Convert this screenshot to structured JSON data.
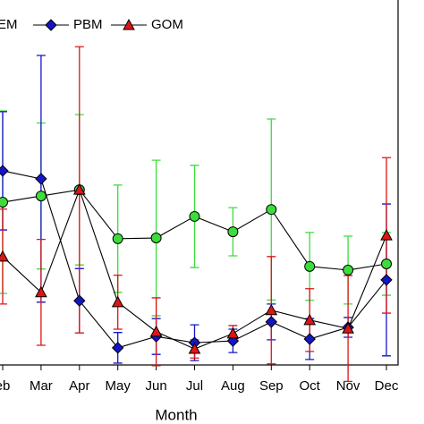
{
  "chart_data": {
    "type": "line",
    "x_label": "Month",
    "categories": [
      "eb",
      "Mar",
      "Apr",
      "May",
      "Jun",
      "Jul",
      "Aug",
      "Sep",
      "Oct",
      "Nov",
      "Dec"
    ],
    "ylim": [
      0,
      100
    ],
    "series": [
      {
        "name": "EM",
        "color": "#3ddc3d",
        "marker": "circle",
        "values": [
          44.6,
          46.3,
          48.0,
          34.6,
          34.8,
          40.7,
          36.5,
          42.6,
          27.0,
          26.0,
          27.7
        ],
        "errors": [
          25,
          20,
          20.6,
          14.7,
          21.3,
          14,
          6.6,
          24.8,
          9.3,
          9.3,
          8.6
        ]
      },
      {
        "name": "PBM",
        "color": "#1515c8",
        "marker": "diamond",
        "values": [
          53.2,
          51.0,
          17.6,
          4.7,
          7.8,
          6.1,
          6.6,
          11.8,
          7.1,
          10.3,
          23.3
        ],
        "errors": [
          16.2,
          33.8,
          8.8,
          4.2,
          4.9,
          4.9,
          3.2,
          4.9,
          5.6,
          2.7,
          20.8
        ]
      },
      {
        "name": "GOM",
        "color": "#dd1515",
        "marker": "triangle",
        "values": [
          29.7,
          19.9,
          48.0,
          17.2,
          9.1,
          4.4,
          8.6,
          15.0,
          12.3,
          10.0,
          35.5
        ],
        "errors": [
          13,
          14.5,
          39.2,
          7.4,
          9.3,
          2.5,
          2.2,
          14.7,
          8.6,
          14.5,
          21.3
        ]
      }
    ]
  }
}
